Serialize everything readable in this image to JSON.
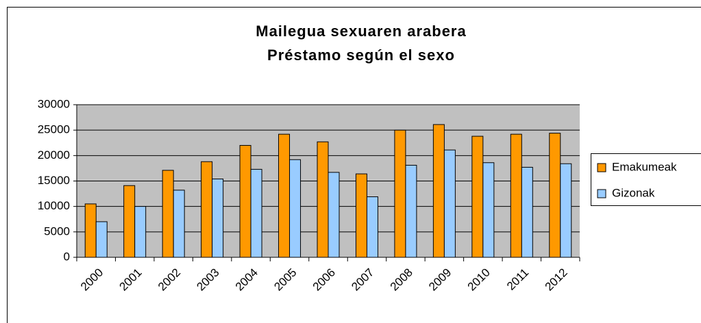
{
  "chart_data": {
    "type": "bar",
    "title": "Mailegua sexuaren arabera",
    "subtitle": "Préstamo según el sexo",
    "categories": [
      "2000",
      "2001",
      "2002",
      "2003",
      "2004",
      "2005",
      "2006",
      "2007",
      "2008",
      "2009",
      "2010",
      "2011",
      "2012"
    ],
    "series": [
      {
        "name": "Emakumeak",
        "color": "#ff9900",
        "values": [
          10500,
          14100,
          17100,
          18800,
          22000,
          24200,
          22700,
          16400,
          25000,
          26100,
          23800,
          24200,
          24400
        ]
      },
      {
        "name": "Gizonak",
        "color": "#99ccff",
        "values": [
          7000,
          10000,
          13200,
          15400,
          17300,
          19200,
          16700,
          11900,
          18100,
          21100,
          18600,
          17700,
          18400
        ]
      }
    ],
    "ylim": [
      0,
      30000
    ],
    "yticks": [
      0,
      5000,
      10000,
      15000,
      20000,
      25000,
      30000
    ],
    "grid": true,
    "legend": "right"
  }
}
